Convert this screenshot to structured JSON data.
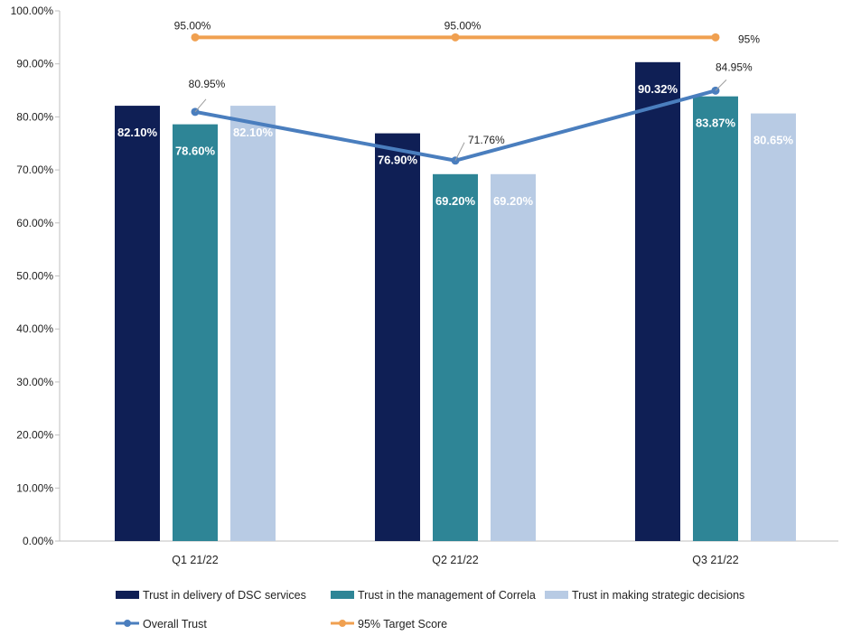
{
  "chart_data": {
    "type": "bar",
    "categories": [
      "Q1 21/22",
      "Q2 21/22",
      "Q3 21/22"
    ],
    "ylim": [
      0,
      100
    ],
    "yticks": [
      "0.00%",
      "10.00%",
      "20.00%",
      "30.00%",
      "40.00%",
      "50.00%",
      "60.00%",
      "70.00%",
      "80.00%",
      "90.00%",
      "100.00%"
    ],
    "grid": false,
    "legend_position": "bottom",
    "series": [
      {
        "name": "Trust in delivery of DSC services",
        "kind": "bar",
        "color": "#0f1f55",
        "values": [
          82.1,
          76.9,
          90.32
        ],
        "labels": [
          "82.10%",
          "76.90%",
          "90.32%"
        ]
      },
      {
        "name": "Trust in the management of Correla",
        "kind": "bar",
        "color": "#2e8596",
        "values": [
          78.6,
          69.2,
          83.87
        ],
        "labels": [
          "78.60%",
          "69.20%",
          "83.87%"
        ]
      },
      {
        "name": "Trust in making strategic decisions",
        "kind": "bar",
        "color": "#b8cbe4",
        "values": [
          82.1,
          69.2,
          80.65
        ],
        "labels": [
          "82.10%",
          "69.20%",
          "80.65%"
        ]
      },
      {
        "name": "Overall Trust",
        "kind": "line",
        "color": "#4a7ebe",
        "values": [
          80.95,
          71.76,
          84.95
        ],
        "labels": [
          "80.95%",
          "71.76%",
          "84.95%"
        ]
      },
      {
        "name": "95% Target Score",
        "kind": "line",
        "color": "#f0a050",
        "values": [
          95,
          95,
          95
        ],
        "labels": [
          "95.00%",
          "95.00%",
          "95%"
        ]
      }
    ]
  }
}
